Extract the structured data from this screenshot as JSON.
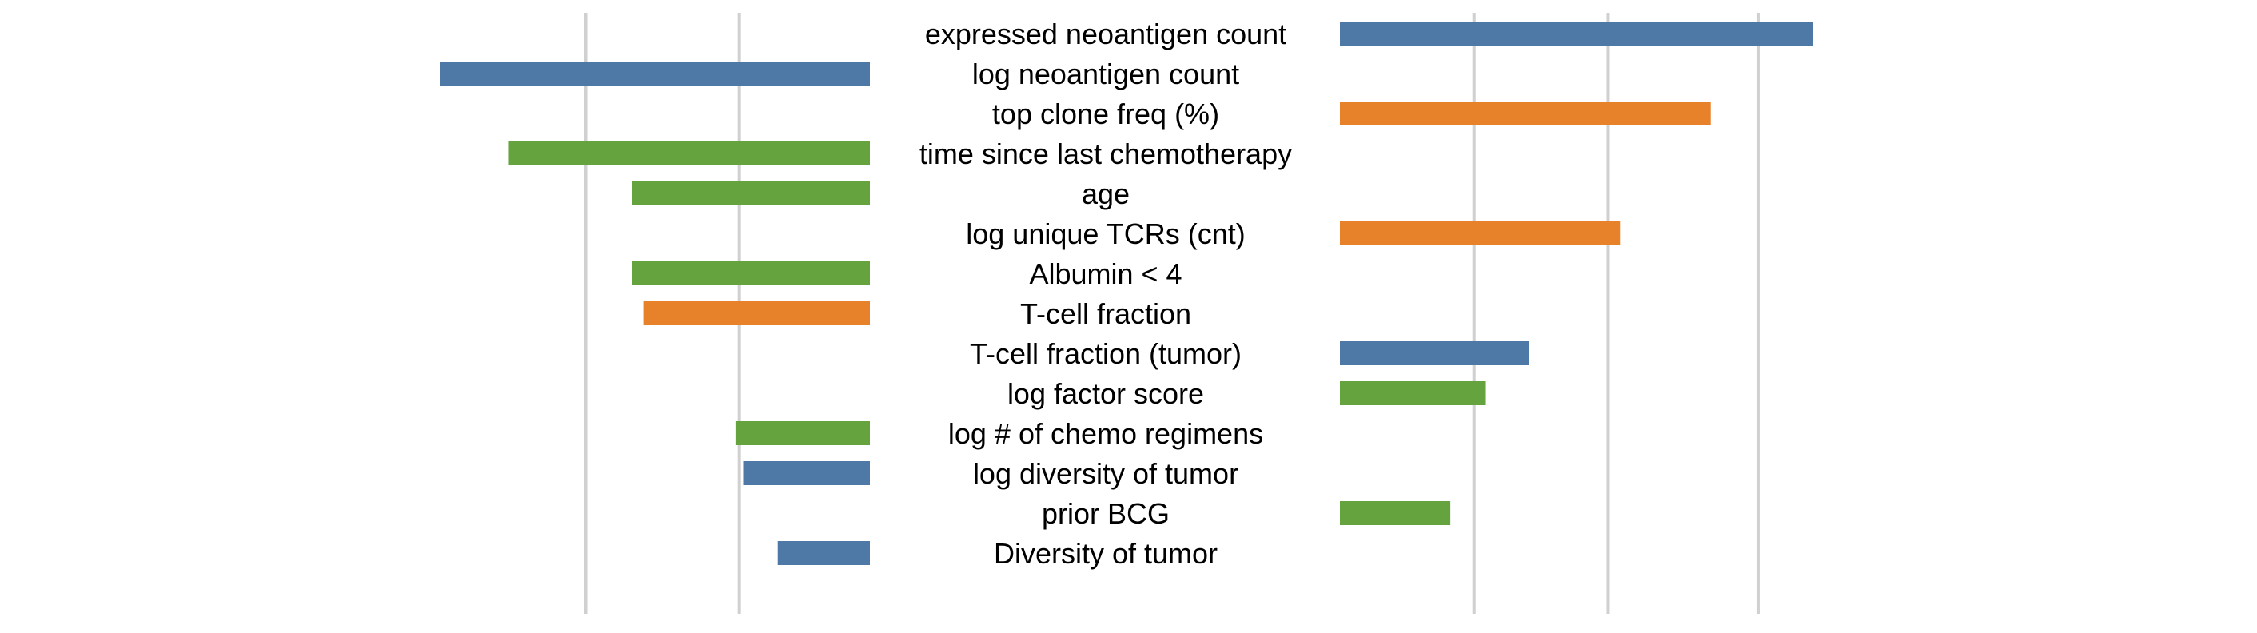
{
  "chart_data": {
    "type": "bar",
    "orientation": "horizontal",
    "layout": "two-sided",
    "grid": true,
    "legend": "none",
    "colors": {
      "blue": "#4e79a7",
      "orange": "#e8822a",
      "green": "#64a33e",
      "grid": "#d0d0d0"
    },
    "categories": [
      "expressed neoantigen count",
      "log neoantigen count",
      "top clone freq (%)",
      "time since last chemotherapy",
      "age",
      "log unique TCRs (cnt)",
      "Albumin < 4",
      "T-cell fraction",
      "T-cell fraction (tumor)",
      "log factor score",
      "log # of chemo regimens",
      "log diversity of tumor",
      "prior BCG",
      "Diversity of tumor"
    ],
    "left_panel": {
      "xlim": [
        0,
        5.6
      ],
      "gridlines": [
        3.7,
        1.7
      ],
      "values": [
        0,
        5.6,
        0,
        4.7,
        3.1,
        0,
        3.1,
        2.95,
        0,
        0,
        1.75,
        1.65,
        0,
        1.2
      ],
      "colors": [
        "",
        "blue",
        "",
        "green",
        "green",
        "",
        "green",
        "orange",
        "",
        "",
        "green",
        "blue",
        "",
        "blue"
      ]
    },
    "right_panel": {
      "xlim": [
        0,
        6.0
      ],
      "gridlines": [
        1.7,
        3.4,
        5.3
      ],
      "values": [
        6.0,
        0,
        4.7,
        0,
        0,
        3.55,
        0,
        0,
        2.4,
        1.85,
        0,
        0,
        1.4,
        0
      ],
      "colors": [
        "blue",
        "",
        "orange",
        "",
        "",
        "orange",
        "",
        "",
        "blue",
        "green",
        "",
        "",
        "green",
        ""
      ]
    }
  }
}
